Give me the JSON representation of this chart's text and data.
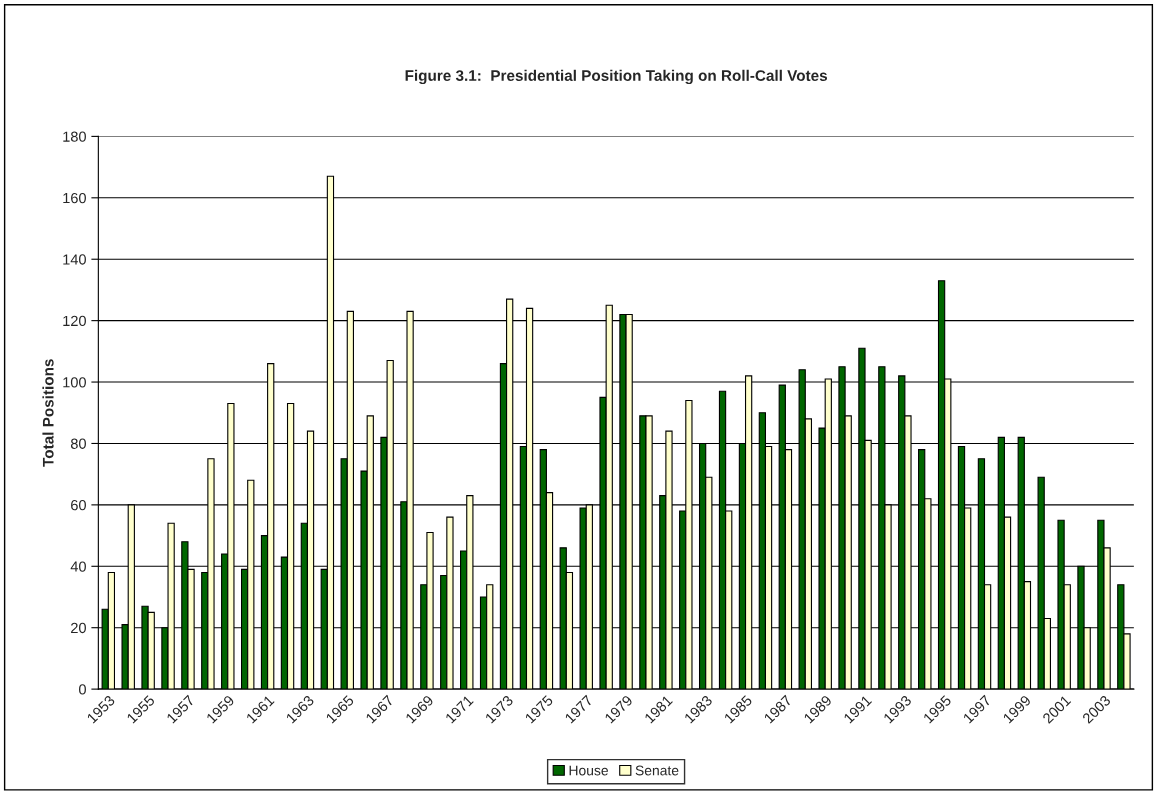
{
  "chart_data": {
    "type": "bar",
    "title": "Figure 3.1:  Presidential Position Taking on Roll-Call Votes",
    "ylabel": "Total Positions",
    "categories": [
      "1953",
      null,
      "1955",
      null,
      "1957",
      null,
      "1959",
      null,
      "1961",
      null,
      "1963",
      null,
      "1965",
      null,
      "1967",
      null,
      "1969",
      null,
      "1971",
      null,
      "1973",
      null,
      "1975",
      null,
      "1977",
      null,
      "1979",
      null,
      "1981",
      null,
      "1983",
      null,
      "1985",
      null,
      "1987",
      null,
      "1989",
      null,
      "1991",
      null,
      "1993",
      null,
      "1995",
      null,
      "1997",
      null,
      "1999",
      null,
      "2001",
      null,
      "2003",
      null
    ],
    "series": [
      {
        "name": "House",
        "color": "#006600",
        "values": [
          26,
          21,
          27,
          20,
          48,
          38,
          44,
          39,
          50,
          43,
          54,
          39,
          75,
          71,
          82,
          61,
          34,
          37,
          45,
          30,
          106,
          79,
          78,
          46,
          59,
          95,
          122,
          89,
          63,
          58,
          80,
          97,
          80,
          90,
          99,
          104,
          85,
          105,
          111,
          105,
          102,
          78,
          133,
          79,
          75,
          82,
          82,
          69,
          55,
          40,
          55,
          34
        ]
      },
      {
        "name": "Senate",
        "color": "#ffffcc",
        "values": [
          38,
          60,
          25,
          54,
          39,
          75,
          93,
          68,
          106,
          93,
          84,
          167,
          123,
          89,
          107,
          123,
          51,
          56,
          63,
          34,
          127,
          124,
          64,
          38,
          60,
          125,
          122,
          89,
          84,
          94,
          69,
          58,
          102,
          79,
          78,
          88,
          101,
          89,
          81,
          60,
          89,
          62,
          101,
          59,
          34,
          56,
          35,
          23,
          34,
          20,
          46,
          18
        ]
      }
    ],
    "ylim": [
      0,
      180
    ],
    "yticks": [
      0,
      20,
      40,
      60,
      80,
      100,
      120,
      140,
      160,
      180
    ],
    "grid": "y",
    "legend": "bottom"
  }
}
